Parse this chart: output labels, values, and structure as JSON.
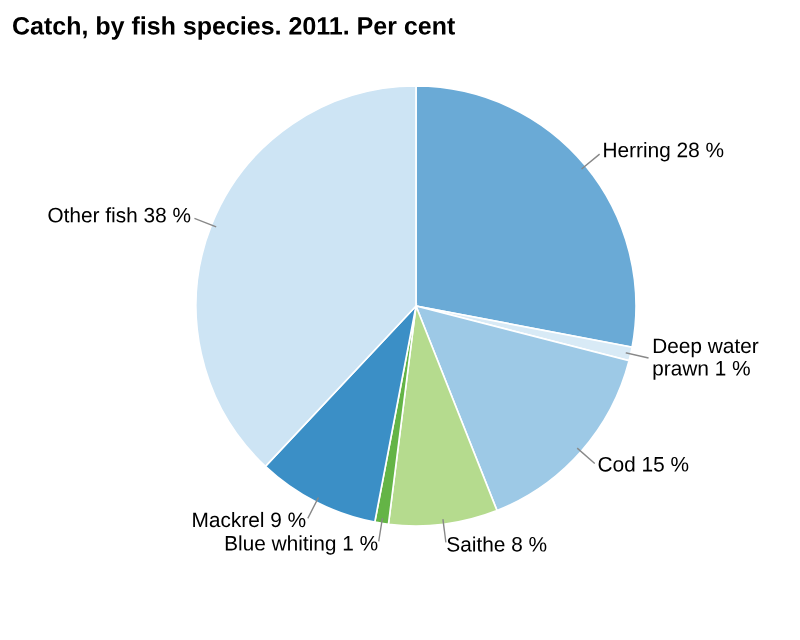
{
  "chart_data": {
    "type": "pie",
    "title": "Catch, by fish species. 2011. Per cent",
    "categories": [
      "Herring",
      "Deep water prawn",
      "Cod",
      "Saithe",
      "Blue whiting",
      "Mackrel",
      "Other fish"
    ],
    "values": [
      28,
      1,
      15,
      8,
      1,
      9,
      38
    ],
    "value_labels": [
      "28 %",
      "1 %",
      "15 %",
      "8 %",
      "1 %",
      "9 %",
      "38 %"
    ],
    "colors": [
      "#6aaad6",
      "#d8eaf6",
      "#9dc9e6",
      "#b5db8e",
      "#64b446",
      "#3b8fc6",
      "#cde4f4"
    ]
  }
}
